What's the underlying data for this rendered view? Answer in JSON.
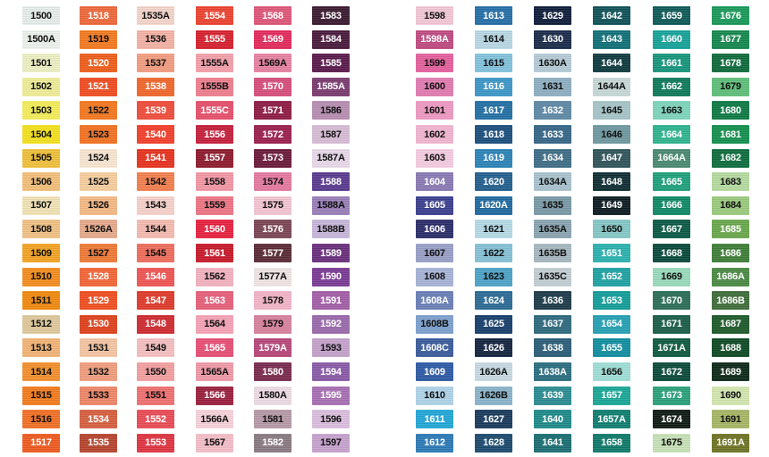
{
  "columns": [
    {
      "items": [
        {
          "code": "1500",
          "color": "#e8eeec"
        },
        {
          "code": "1500A",
          "color": "#eef3ee"
        },
        {
          "code": "1501",
          "color": "#eef0c4"
        },
        {
          "code": "1502",
          "color": "#f0ee98"
        },
        {
          "code": "1503",
          "color": "#f5ee5a"
        },
        {
          "code": "1504",
          "color": "#f5e21d"
        },
        {
          "code": "1505",
          "color": "#f0c13a"
        },
        {
          "code": "1506",
          "color": "#f5c07a"
        },
        {
          "code": "1507",
          "color": "#f3e4b6"
        },
        {
          "code": "1508",
          "color": "#f2c285"
        },
        {
          "code": "1509",
          "color": "#f5a423"
        },
        {
          "code": "1510",
          "color": "#f58d1e"
        },
        {
          "code": "1511",
          "color": "#f28a0f"
        },
        {
          "code": "1512",
          "color": "#e0ca9c"
        },
        {
          "code": "1513",
          "color": "#f4b476"
        },
        {
          "code": "1514",
          "color": "#f4902d"
        },
        {
          "code": "1515",
          "color": "#f57c1d"
        },
        {
          "code": "1516",
          "color": "#f37025"
        },
        {
          "code": "1517",
          "color": "#f05a1f"
        }
      ]
    },
    {
      "items": [
        {
          "code": "1518",
          "color": "#f0683a"
        },
        {
          "code": "1519",
          "color": "#f47a20"
        },
        {
          "code": "1520",
          "color": "#f05e1a"
        },
        {
          "code": "1521",
          "color": "#f24c20"
        },
        {
          "code": "1522",
          "color": "#f5781e"
        },
        {
          "code": "1523",
          "color": "#f47322"
        },
        {
          "code": "1524",
          "color": "#f8e7d2"
        },
        {
          "code": "1525",
          "color": "#f8cf9f"
        },
        {
          "code": "1526",
          "color": "#f6ba85"
        },
        {
          "code": "1526A",
          "color": "#e8ab8c"
        },
        {
          "code": "1527",
          "color": "#f07a35"
        },
        {
          "code": "1528",
          "color": "#f46637"
        },
        {
          "code": "1529",
          "color": "#f24f20"
        },
        {
          "code": "1530",
          "color": "#e0421c"
        },
        {
          "code": "1531",
          "color": "#f6c6a4"
        },
        {
          "code": "1532",
          "color": "#f29e7e"
        },
        {
          "code": "1533",
          "color": "#f08768"
        },
        {
          "code": "1534",
          "color": "#d86040"
        },
        {
          "code": "1535",
          "color": "#b8452e"
        }
      ]
    },
    {
      "items": [
        {
          "code": "1535A",
          "color": "#f5d6cc"
        },
        {
          "code": "1536",
          "color": "#f7b3a6"
        },
        {
          "code": "1537",
          "color": "#f49d80"
        },
        {
          "code": "1538",
          "color": "#f2672b"
        },
        {
          "code": "1539",
          "color": "#f14c3b"
        },
        {
          "code": "1540",
          "color": "#f43f2a"
        },
        {
          "code": "1541",
          "color": "#e8321e"
        },
        {
          "code": "1542",
          "color": "#f4804e"
        },
        {
          "code": "1543",
          "color": "#f8d3cc"
        },
        {
          "code": "1544",
          "color": "#f6bcb1"
        },
        {
          "code": "1545",
          "color": "#f06d5c"
        },
        {
          "code": "1546",
          "color": "#f05553"
        },
        {
          "code": "1547",
          "color": "#e03a2b"
        },
        {
          "code": "1548",
          "color": "#d02a2f"
        },
        {
          "code": "1549",
          "color": "#f6c0c1"
        },
        {
          "code": "1550",
          "color": "#f5a0a2"
        },
        {
          "code": "1551",
          "color": "#f17170"
        },
        {
          "code": "1552",
          "color": "#eb4b55"
        },
        {
          "code": "1553",
          "color": "#e03441"
        }
      ]
    },
    {
      "items": [
        {
          "code": "1554",
          "color": "#ee4330"
        },
        {
          "code": "1555",
          "color": "#d8202e"
        },
        {
          "code": "1555A",
          "color": "#f5a0ab"
        },
        {
          "code": "1555B",
          "color": "#f07f8f"
        },
        {
          "code": "1555C",
          "color": "#e8506b"
        },
        {
          "code": "1556",
          "color": "#c51f3c"
        },
        {
          "code": "1557",
          "color": "#8e1a2d"
        },
        {
          "code": "1558",
          "color": "#f597a6"
        },
        {
          "code": "1559",
          "color": "#f07585"
        },
        {
          "code": "1560",
          "color": "#e9213f"
        },
        {
          "code": "1561",
          "color": "#c9192a"
        },
        {
          "code": "1562",
          "color": "#f5b3c0"
        },
        {
          "code": "1563",
          "color": "#e8607a"
        },
        {
          "code": "1564",
          "color": "#f7a4b7"
        },
        {
          "code": "1565",
          "color": "#e94f75"
        },
        {
          "code": "1565A",
          "color": "#f29aa8"
        },
        {
          "code": "1566",
          "color": "#9b1f3d"
        },
        {
          "code": "1566A",
          "color": "#f8d3dc"
        },
        {
          "code": "1567",
          "color": "#f5bfc9"
        }
      ]
    },
    {
      "items": [
        {
          "code": "1568",
          "color": "#e0577a"
        },
        {
          "code": "1569",
          "color": "#e42a5c"
        },
        {
          "code": "1569A",
          "color": "#e882a3"
        },
        {
          "code": "1570",
          "color": "#d84e7c"
        },
        {
          "code": "1571",
          "color": "#8e1c44"
        },
        {
          "code": "1572",
          "color": "#9c1f4e"
        },
        {
          "code": "1573",
          "color": "#6c1a3a"
        },
        {
          "code": "1574",
          "color": "#e67aa0"
        },
        {
          "code": "1575",
          "color": "#f5c6d4"
        },
        {
          "code": "1576",
          "color": "#7c4556"
        },
        {
          "code": "1577",
          "color": "#5a2a35"
        },
        {
          "code": "1577A",
          "color": "#f2e6e6"
        },
        {
          "code": "1578",
          "color": "#f4b6c9"
        },
        {
          "code": "1579",
          "color": "#d9829e"
        },
        {
          "code": "1579A",
          "color": "#b8467a"
        },
        {
          "code": "1580",
          "color": "#7a2a4e"
        },
        {
          "code": "1580A",
          "color": "#efdde6"
        },
        {
          "code": "1581",
          "color": "#b89aa8"
        },
        {
          "code": "1582",
          "color": "#8a7a82"
        }
      ]
    },
    {
      "items": [
        {
          "code": "1583",
          "color": "#3a1a30"
        },
        {
          "code": "1584",
          "color": "#4a1a3c"
        },
        {
          "code": "1585",
          "color": "#5a1a4c"
        },
        {
          "code": "1585A",
          "color": "#7a3a6e"
        },
        {
          "code": "1586",
          "color": "#b98fb3"
        },
        {
          "code": "1587",
          "color": "#d8bdd6"
        },
        {
          "code": "1587A",
          "color": "#eadaea"
        },
        {
          "code": "1588",
          "color": "#5a3a90"
        },
        {
          "code": "1588A",
          "color": "#9a7fb9"
        },
        {
          "code": "1588B",
          "color": "#c9b8dc"
        },
        {
          "code": "1589",
          "color": "#6a2f7c"
        },
        {
          "code": "1590",
          "color": "#7a3a94"
        },
        {
          "code": "1591",
          "color": "#a45fa8"
        },
        {
          "code": "1592",
          "color": "#9a6aab"
        },
        {
          "code": "1593",
          "color": "#c6a3cd"
        },
        {
          "code": "1594",
          "color": "#8a5aa8"
        },
        {
          "code": "1595",
          "color": "#a86fb4"
        },
        {
          "code": "1596",
          "color": "#dcbfe0"
        },
        {
          "code": "1597",
          "color": "#c7a3cf"
        }
      ]
    },
    {
      "items": [
        {
          "code": "1598",
          "color": "#f4c8d8"
        },
        {
          "code": "1598A",
          "color": "#c04a82"
        },
        {
          "code": "1599",
          "color": "#e6609e"
        },
        {
          "code": "1600",
          "color": "#e37cb2"
        },
        {
          "code": "1601",
          "color": "#f09ac4"
        },
        {
          "code": "1602",
          "color": "#f3b7d1"
        },
        {
          "code": "1603",
          "color": "#f6cde2"
        },
        {
          "code": "1604",
          "color": "#8a7ab4"
        },
        {
          "code": "1605",
          "color": "#3b3f8f"
        },
        {
          "code": "1606",
          "color": "#2a2d6a"
        },
        {
          "code": "1607",
          "color": "#9aa0c8"
        },
        {
          "code": "1608",
          "color": "#a8b4d8"
        },
        {
          "code": "1608A",
          "color": "#6a80b8"
        },
        {
          "code": "1608B",
          "color": "#7da2cf"
        },
        {
          "code": "1608C",
          "color": "#3a5c9c"
        },
        {
          "code": "1609",
          "color": "#2e5aa6"
        },
        {
          "code": "1610",
          "color": "#b0d5ea"
        },
        {
          "code": "1611",
          "color": "#22a8d8"
        },
        {
          "code": "1612",
          "color": "#2a7ab8"
        }
      ]
    },
    {
      "items": [
        {
          "code": "1613",
          "color": "#256fa8"
        },
        {
          "code": "1614",
          "color": "#b9d9e6"
        },
        {
          "code": "1615",
          "color": "#82c4de"
        },
        {
          "code": "1616",
          "color": "#3b97c9"
        },
        {
          "code": "1617",
          "color": "#2270a5"
        },
        {
          "code": "1618",
          "color": "#1b4f7e"
        },
        {
          "code": "1619",
          "color": "#2b84b8"
        },
        {
          "code": "1620",
          "color": "#23608f"
        },
        {
          "code": "1620A",
          "color": "#1f6aa0"
        },
        {
          "code": "1621",
          "color": "#b6dce8"
        },
        {
          "code": "1622",
          "color": "#86c2d8"
        },
        {
          "code": "1623",
          "color": "#4ca4c8"
        },
        {
          "code": "1624",
          "color": "#2b6b96"
        },
        {
          "code": "1625",
          "color": "#173e6c"
        },
        {
          "code": "1626",
          "color": "#13233f"
        },
        {
          "code": "1626A",
          "color": "#c9dbe5"
        },
        {
          "code": "1626B",
          "color": "#8ab5cc"
        },
        {
          "code": "1627",
          "color": "#1a3a5c"
        },
        {
          "code": "1628",
          "color": "#1b4a6e"
        }
      ]
    },
    {
      "items": [
        {
          "code": "1629",
          "color": "#0e1d3a"
        },
        {
          "code": "1630",
          "color": "#1a2a4a"
        },
        {
          "code": "1630A",
          "color": "#b6ccd8"
        },
        {
          "code": "1631",
          "color": "#8eb0c4"
        },
        {
          "code": "1632",
          "color": "#5f8aa6"
        },
        {
          "code": "1633",
          "color": "#356688"
        },
        {
          "code": "1634",
          "color": "#3f6d87"
        },
        {
          "code": "1634A",
          "color": "#a9c3cf"
        },
        {
          "code": "1635",
          "color": "#7a9aa8"
        },
        {
          "code": "1635A",
          "color": "#8ba6b2"
        },
        {
          "code": "1635B",
          "color": "#a7b9c1"
        },
        {
          "code": "1635C",
          "color": "#c4cfd4"
        },
        {
          "code": "1636",
          "color": "#1d3a4a"
        },
        {
          "code": "1637",
          "color": "#2e6a7e"
        },
        {
          "code": "1638",
          "color": "#2a5e78"
        },
        {
          "code": "1638A",
          "color": "#2a6e80"
        },
        {
          "code": "1639",
          "color": "#2a8c92"
        },
        {
          "code": "1640",
          "color": "#1f8a8a"
        },
        {
          "code": "1641",
          "color": "#1a6e73"
        }
      ]
    },
    {
      "items": [
        {
          "code": "1642",
          "color": "#0f5258"
        },
        {
          "code": "1643",
          "color": "#107078"
        },
        {
          "code": "1644",
          "color": "#0d3a40"
        },
        {
          "code": "1644A",
          "color": "#c8dad9"
        },
        {
          "code": "1645",
          "color": "#a7c6c8"
        },
        {
          "code": "1646",
          "color": "#6f9aa0"
        },
        {
          "code": "1647",
          "color": "#30555a"
        },
        {
          "code": "1648",
          "color": "#0f2e33"
        },
        {
          "code": "1649",
          "color": "#0c1c22"
        },
        {
          "code": "1650",
          "color": "#86c9c8"
        },
        {
          "code": "1651",
          "color": "#2bb2b0"
        },
        {
          "code": "1652",
          "color": "#1fa3a3"
        },
        {
          "code": "1653",
          "color": "#149e9a"
        },
        {
          "code": "1654",
          "color": "#25a2b5"
        },
        {
          "code": "1655",
          "color": "#0f8fa0"
        },
        {
          "code": "1656",
          "color": "#9fe0d8"
        },
        {
          "code": "1657",
          "color": "#19a898"
        },
        {
          "code": "1657A",
          "color": "#0f7f72"
        },
        {
          "code": "1658",
          "color": "#0e7a6a"
        }
      ]
    },
    {
      "items": [
        {
          "code": "1659",
          "color": "#0e5a58"
        },
        {
          "code": "1660",
          "color": "#16a39a"
        },
        {
          "code": "1661",
          "color": "#16967c"
        },
        {
          "code": "1662",
          "color": "#0e7a5a"
        },
        {
          "code": "1663",
          "color": "#7fd6bd"
        },
        {
          "code": "1664",
          "color": "#2fb58f"
        },
        {
          "code": "1664A",
          "color": "#4a8a72"
        },
        {
          "code": "1665",
          "color": "#1ea17c"
        },
        {
          "code": "1666",
          "color": "#0e8a66"
        },
        {
          "code": "1667",
          "color": "#0a5a45"
        },
        {
          "code": "1668",
          "color": "#084a3a"
        },
        {
          "code": "1669",
          "color": "#9adcbc"
        },
        {
          "code": "1670",
          "color": "#2a6e58"
        },
        {
          "code": "1671",
          "color": "#1a5e48"
        },
        {
          "code": "1671A",
          "color": "#0e5a40"
        },
        {
          "code": "1672",
          "color": "#0a4a3a"
        },
        {
          "code": "1673",
          "color": "#2aa27a"
        },
        {
          "code": "1674",
          "color": "#0e1a14"
        },
        {
          "code": "1675",
          "color": "#c9e3b8"
        }
      ]
    },
    {
      "items": [
        {
          "code": "1676",
          "color": "#1a9a5a"
        },
        {
          "code": "1677",
          "color": "#14884e"
        },
        {
          "code": "1678",
          "color": "#0e6a3c"
        },
        {
          "code": "1679",
          "color": "#5fc07a"
        },
        {
          "code": "1680",
          "color": "#0d7a44"
        },
        {
          "code": "1681",
          "color": "#14904f"
        },
        {
          "code": "1682",
          "color": "#0e6d3e"
        },
        {
          "code": "1683",
          "color": "#b6dca0"
        },
        {
          "code": "1684",
          "color": "#9ccc7e"
        },
        {
          "code": "1685",
          "color": "#6aa84c"
        },
        {
          "code": "1686",
          "color": "#3e7e38"
        },
        {
          "code": "1686A",
          "color": "#4a8a44"
        },
        {
          "code": "1686B",
          "color": "#3f6d3a"
        },
        {
          "code": "1687",
          "color": "#1e5a2a"
        },
        {
          "code": "1688",
          "color": "#0e4a24"
        },
        {
          "code": "1689",
          "color": "#0c2818"
        },
        {
          "code": "1690",
          "color": "#d4e8b0"
        },
        {
          "code": "1691",
          "color": "#a8b866"
        },
        {
          "code": "1691A",
          "color": "#6e7424"
        }
      ]
    }
  ]
}
